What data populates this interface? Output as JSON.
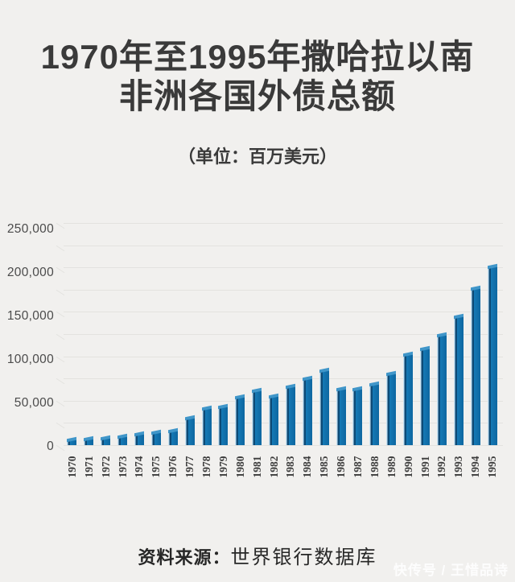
{
  "page": {
    "background": "#f1f0ee",
    "title_line1": "1970年至1995年撒哈拉以南",
    "title_line2": "非洲各国外债总额",
    "subtitle": "（单位：百万美元）",
    "source_label": "资料来源：",
    "source_value": "世界银行数据库",
    "watermark": "快传号 / 王惜品诗"
  },
  "chart_data": {
    "type": "bar",
    "title": "1970年至1995年撒哈拉以南非洲各国外债总额",
    "unit_note": "（单位：百万美元）",
    "xlabel": "",
    "ylabel": "",
    "categories": [
      "1970",
      "1971",
      "1972",
      "1973",
      "1974",
      "1975",
      "1976",
      "1977",
      "1978",
      "1979",
      "1980",
      "1981",
      "1982",
      "1983",
      "1984",
      "1985",
      "1986",
      "1987",
      "1988",
      "1989",
      "1990",
      "1991",
      "1992",
      "1993",
      "1994",
      "1995"
    ],
    "values": [
      6000,
      6800,
      8000,
      10300,
      12600,
      14300,
      16600,
      31000,
      42000,
      43500,
      54000,
      61500,
      55500,
      66000,
      75500,
      84500,
      63500,
      63000,
      69000,
      80500,
      102000,
      108500,
      124500,
      144500,
      176500,
      201500
    ],
    "ylim": [
      0,
      250000
    ],
    "ytick_values": [
      0,
      50000,
      100000,
      150000,
      200000,
      250000
    ],
    "ytick_labels": [
      "0",
      "50,000",
      "100,000",
      "150,000",
      "200,000",
      "250,000"
    ],
    "ygrid_interval": 25000,
    "grid": true,
    "legend": "none",
    "bar_face_color": "#1172ae",
    "bar_edge_color": "#0d4a76",
    "bar_highlight_color": "#c9e3f3",
    "grid_color": "#e3e2df",
    "source": "世界银行数据库"
  }
}
